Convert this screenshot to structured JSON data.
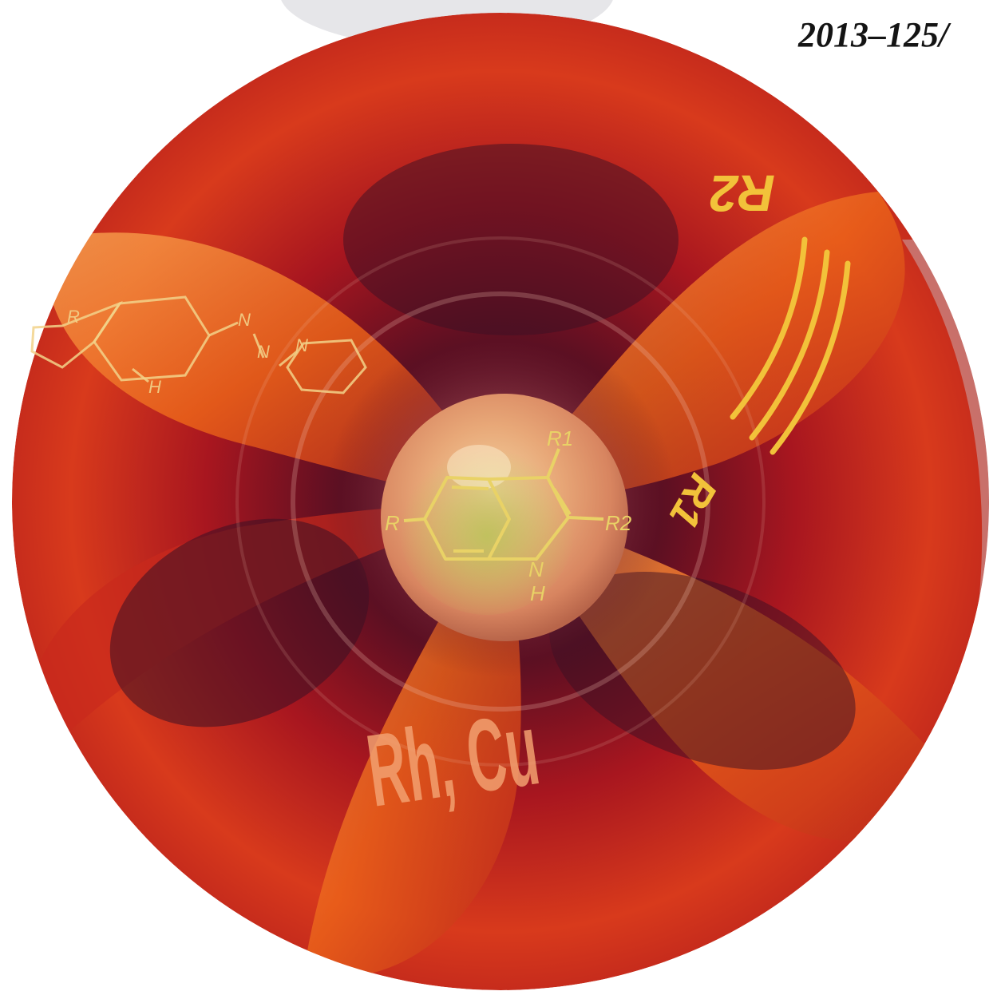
{
  "cover": {
    "issue_label": "2013–125/",
    "catalyst_label": "Rh, Cu",
    "alkyne_labels": {
      "left": "R1",
      "right": "R2"
    },
    "product_labels": {
      "r": "R",
      "r1": "R1",
      "r2": "R2",
      "n": "N",
      "h": "H"
    },
    "triazene_labels": {
      "r": "R",
      "n1": "N",
      "n2": "N",
      "n3": "N",
      "h": "H"
    }
  },
  "colors": {
    "deep_red": "#6e0d1e",
    "red": "#b3151f",
    "orange": "#ef6a1a",
    "gold": "#f2c23a",
    "purple": "#3a1024"
  },
  "icons": [
    "swirl-disc",
    "indole-sphere",
    "triazene-structure",
    "alkyne-structure"
  ]
}
